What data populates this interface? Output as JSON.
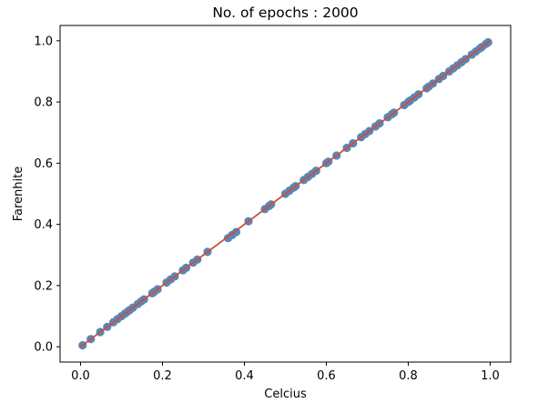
{
  "chart_data": {
    "type": "scatter",
    "title": "No. of epochs : 2000",
    "xlabel": "Celcius",
    "ylabel": "Farenhite",
    "xlim": [
      -0.05,
      1.05
    ],
    "ylim": [
      -0.05,
      1.05
    ],
    "xticks": [
      0.0,
      0.2,
      0.4,
      0.6,
      0.8,
      1.0
    ],
    "yticks": [
      0.0,
      0.2,
      0.4,
      0.6,
      0.8,
      1.0
    ],
    "xtick_labels": [
      "0.0",
      "0.2",
      "0.4",
      "0.6",
      "0.8",
      "1.0"
    ],
    "ytick_labels": [
      "0.0",
      "0.2",
      "0.4",
      "0.6",
      "0.8",
      "1.0"
    ],
    "grid": false,
    "series": [
      {
        "kind": "scatter",
        "color": "#5b86b6",
        "x": [
          0.005,
          0.025,
          0.048,
          0.065,
          0.08,
          0.09,
          0.1,
          0.108,
          0.115,
          0.12,
          0.128,
          0.14,
          0.148,
          0.155,
          0.175,
          0.18,
          0.188,
          0.21,
          0.22,
          0.23,
          0.25,
          0.258,
          0.275,
          0.285,
          0.31,
          0.36,
          0.37,
          0.38,
          0.41,
          0.45,
          0.46,
          0.465,
          0.5,
          0.51,
          0.52,
          0.525,
          0.545,
          0.555,
          0.565,
          0.575,
          0.6,
          0.605,
          0.625,
          0.65,
          0.665,
          0.685,
          0.695,
          0.705,
          0.72,
          0.73,
          0.75,
          0.76,
          0.765,
          0.79,
          0.8,
          0.805,
          0.815,
          0.825,
          0.845,
          0.85,
          0.86,
          0.875,
          0.885,
          0.9,
          0.91,
          0.92,
          0.93,
          0.94,
          0.955,
          0.965,
          0.975,
          0.98,
          0.99,
          0.995
        ],
        "y": [
          0.005,
          0.025,
          0.048,
          0.065,
          0.08,
          0.09,
          0.1,
          0.108,
          0.115,
          0.12,
          0.128,
          0.14,
          0.148,
          0.155,
          0.175,
          0.18,
          0.188,
          0.21,
          0.22,
          0.23,
          0.25,
          0.258,
          0.275,
          0.285,
          0.31,
          0.355,
          0.365,
          0.375,
          0.41,
          0.45,
          0.46,
          0.465,
          0.5,
          0.51,
          0.52,
          0.525,
          0.545,
          0.555,
          0.565,
          0.575,
          0.6,
          0.605,
          0.625,
          0.65,
          0.665,
          0.685,
          0.695,
          0.705,
          0.72,
          0.73,
          0.75,
          0.76,
          0.765,
          0.79,
          0.8,
          0.805,
          0.815,
          0.825,
          0.845,
          0.85,
          0.86,
          0.875,
          0.885,
          0.9,
          0.91,
          0.92,
          0.93,
          0.94,
          0.955,
          0.965,
          0.975,
          0.98,
          0.99,
          0.995
        ]
      },
      {
        "kind": "line",
        "color": "#c8503c",
        "x": [
          0.0,
          1.0
        ],
        "y": [
          0.0,
          1.0
        ]
      }
    ]
  }
}
